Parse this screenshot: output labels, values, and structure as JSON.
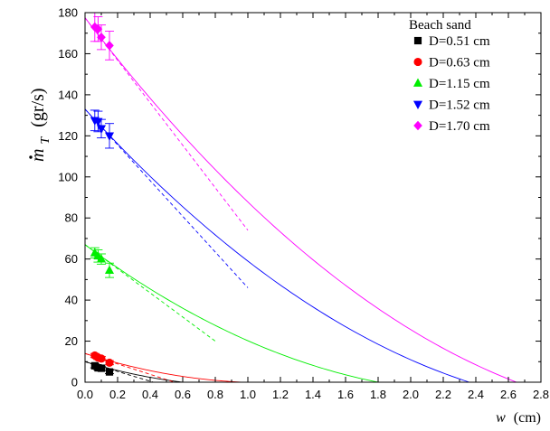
{
  "chart_data": {
    "type": "scatter",
    "title": "",
    "xlabel": "w",
    "xlabel_unit": "(cm)",
    "ylabel_base": "m",
    "ylabel_sub": "T",
    "ylabel_unit": "(gr/s)",
    "xlim": [
      0,
      2.8
    ],
    "ylim": [
      0,
      180
    ],
    "x_ticks": [
      "0.0",
      "0.2",
      "0.4",
      "0.6",
      "0.8",
      "1.0",
      "1.2",
      "1.4",
      "1.6",
      "1.8",
      "2.0",
      "2.2",
      "2.4",
      "2.6",
      "2.8"
    ],
    "y_ticks": [
      "0",
      "20",
      "40",
      "60",
      "80",
      "100",
      "120",
      "140",
      "160",
      "180"
    ],
    "grid": false,
    "legend_title": "Beach sand",
    "legend_position": "top-right",
    "series": [
      {
        "name": "D=0.51 cm",
        "color": "#000000",
        "marker": "square",
        "points": [
          [
            0.06,
            8.0
          ],
          [
            0.08,
            7.0
          ],
          [
            0.1,
            6.8
          ],
          [
            0.15,
            5.0
          ]
        ],
        "errors": [
          1.0,
          1.0,
          1.0,
          0.8
        ],
        "fit_end": 0.6,
        "tangent": [
          [
            0.0,
            10.0
          ],
          [
            0.42,
            0.0
          ]
        ]
      },
      {
        "name": "D=0.63 cm",
        "color": "#ff0000",
        "marker": "circle",
        "points": [
          [
            0.06,
            13.0
          ],
          [
            0.08,
            12.0
          ],
          [
            0.1,
            11.5
          ],
          [
            0.15,
            9.5
          ]
        ],
        "errors": [
          1.0,
          1.0,
          1.0,
          1.0
        ],
        "fit_end": 0.97,
        "tangent": [
          [
            0.0,
            14.0
          ],
          [
            0.55,
            0.0
          ]
        ]
      },
      {
        "name": "D=1.15 cm",
        "color": "#00ee00",
        "marker": "triangle-up",
        "points": [
          [
            0.06,
            63.0
          ],
          [
            0.08,
            61.5
          ],
          [
            0.1,
            60.0
          ],
          [
            0.15,
            54.5
          ]
        ],
        "errors": [
          2.5,
          3.0,
          2.5,
          3.5
        ],
        "fit_end": 1.8,
        "tangent": [
          [
            0.0,
            67.0
          ],
          [
            0.8,
            20.0
          ]
        ]
      },
      {
        "name": "D=1.52 cm",
        "color": "#0000ff",
        "marker": "triangle-down",
        "points": [
          [
            0.06,
            127.5
          ],
          [
            0.08,
            127.0
          ],
          [
            0.1,
            123.5
          ],
          [
            0.15,
            120.0
          ]
        ],
        "errors": [
          5.0,
          5.0,
          4.5,
          6.0
        ],
        "fit_end": 2.36,
        "tangent": [
          [
            0.0,
            133.0
          ],
          [
            1.0,
            46.0
          ]
        ]
      },
      {
        "name": "D=1.70 cm",
        "color": "#ff00ff",
        "marker": "diamond",
        "points": [
          [
            0.06,
            173.0
          ],
          [
            0.08,
            172.0
          ],
          [
            0.1,
            168.0
          ],
          [
            0.15,
            164.0
          ]
        ],
        "errors": [
          7.0,
          6.0,
          6.0,
          7.0
        ],
        "fit_end": 2.65,
        "tangent": [
          [
            0.0,
            177.5
          ],
          [
            1.0,
            74.0
          ]
        ]
      }
    ]
  }
}
